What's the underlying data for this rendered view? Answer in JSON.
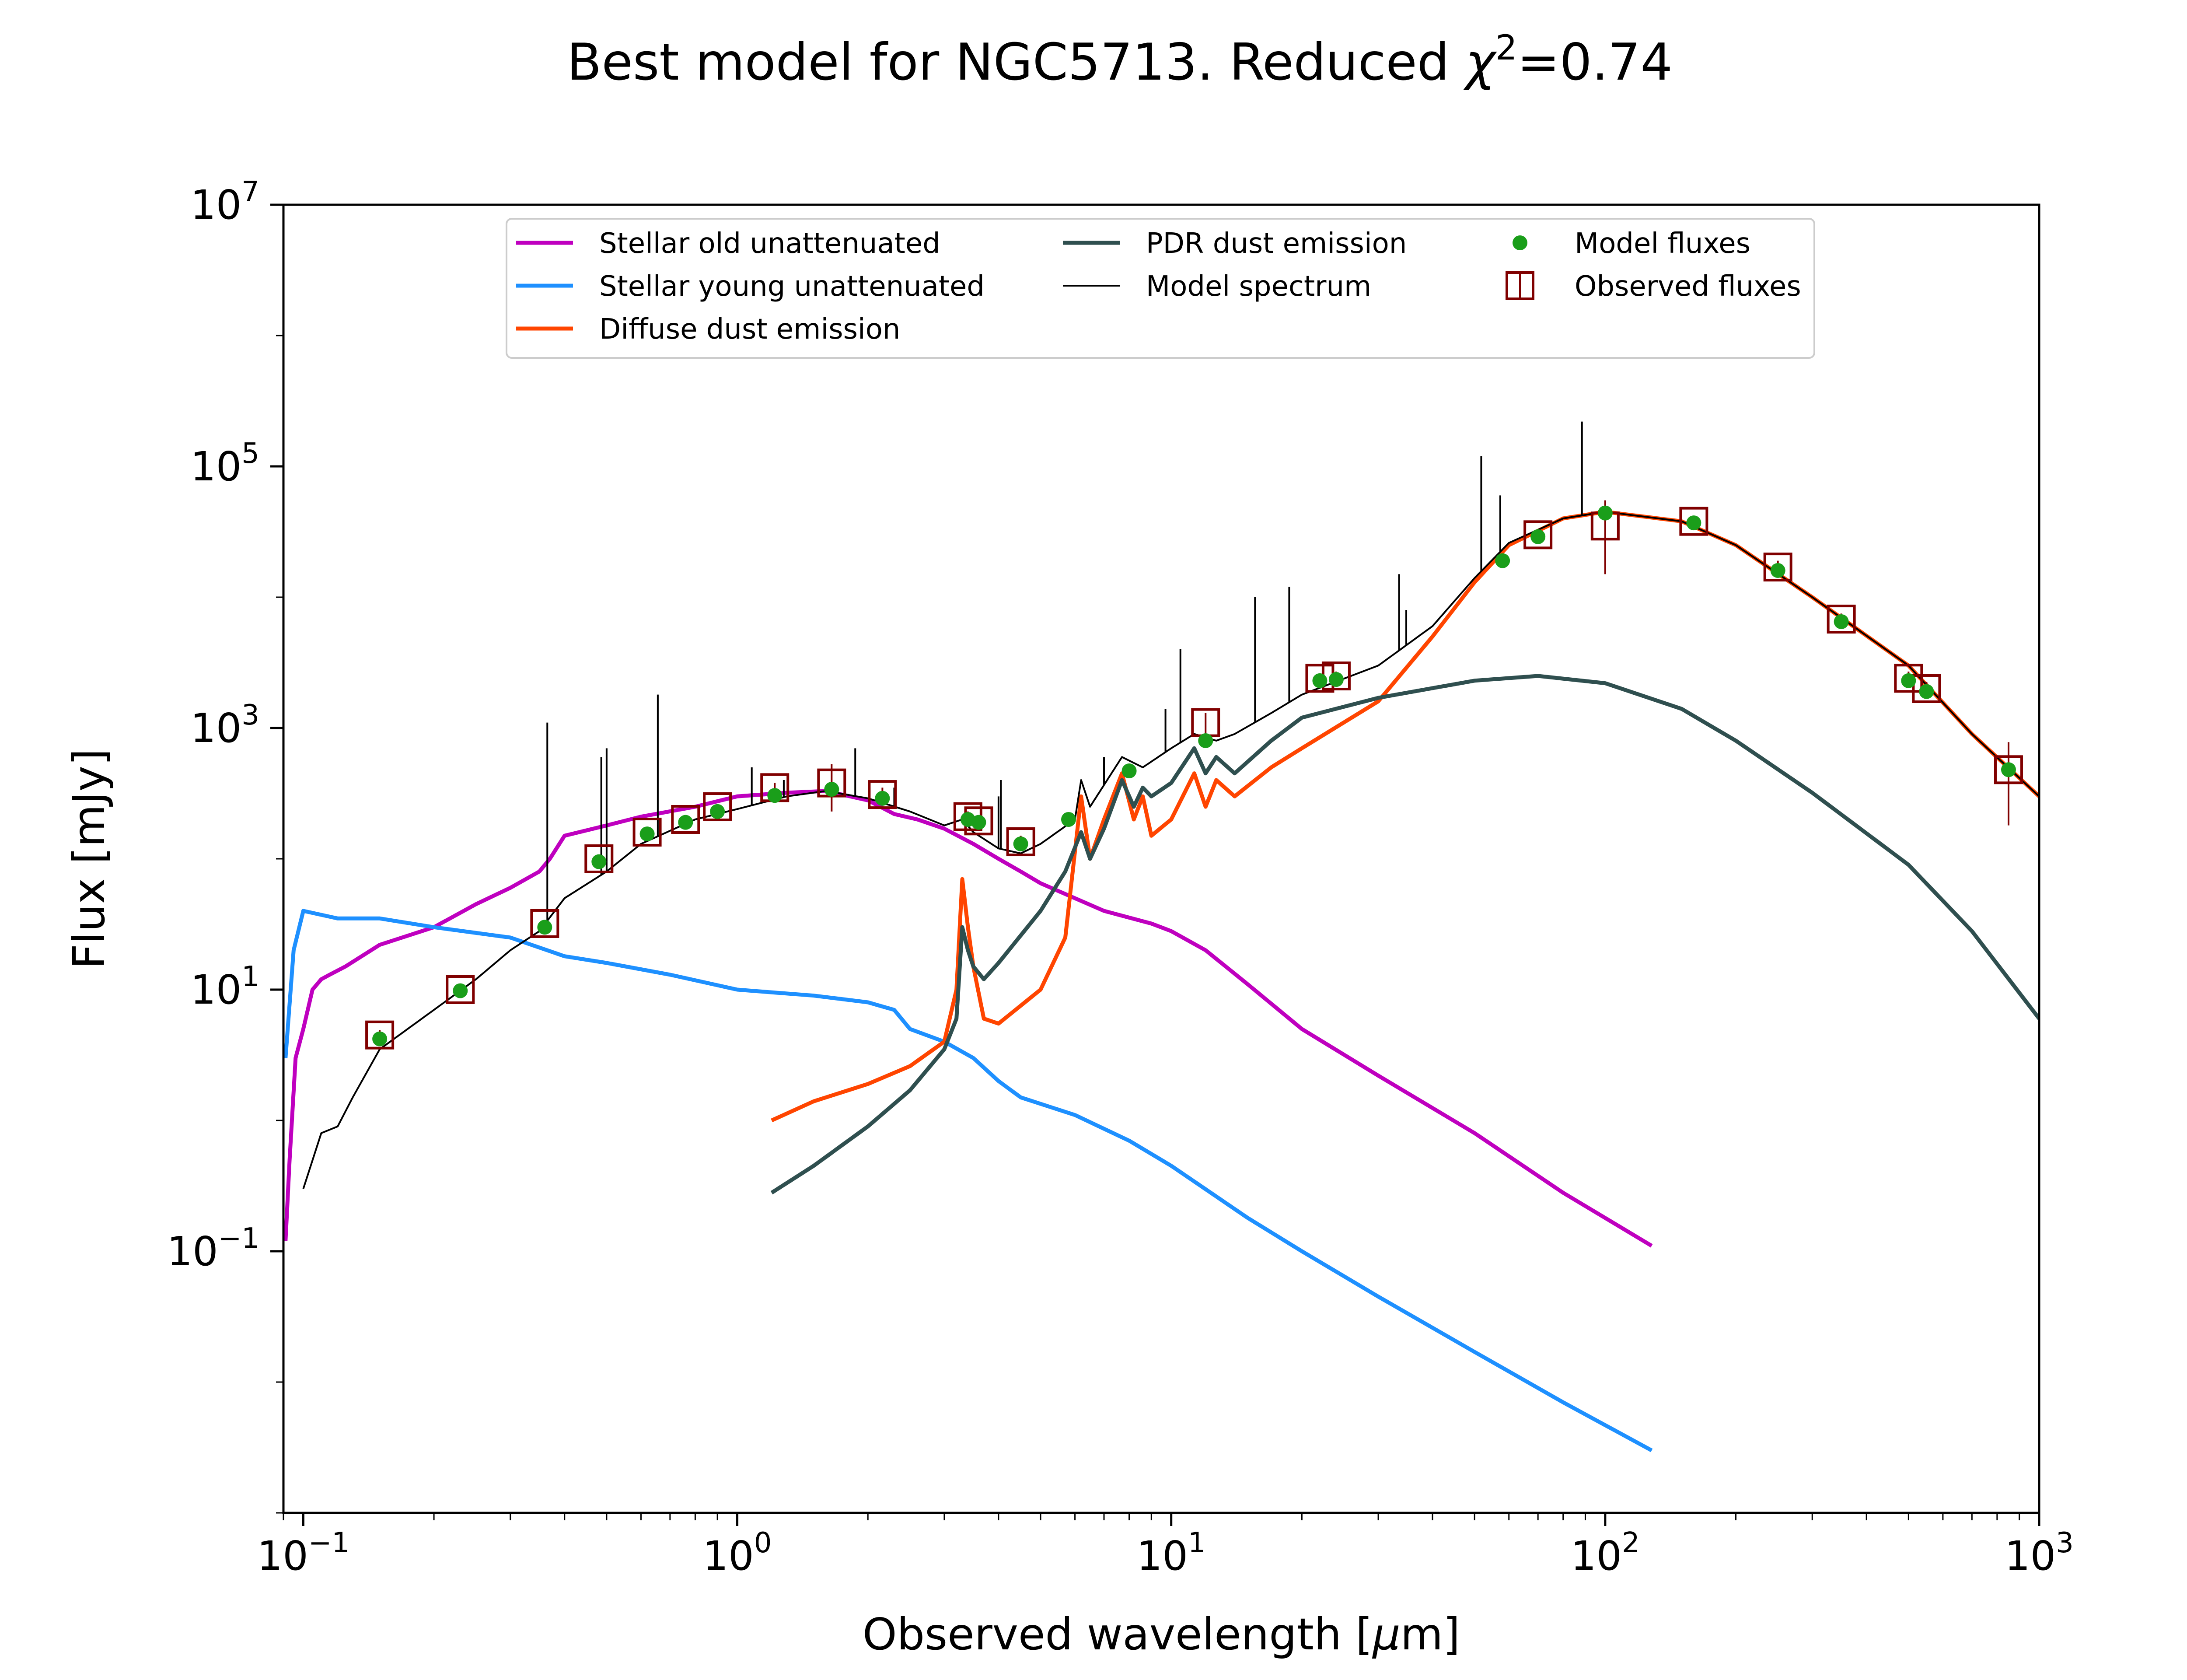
{
  "chart_data": {
    "type": "line",
    "title": "Best model for NGC5713. Reduced χ²=0.74",
    "title_parts": {
      "prefix": "Best model for NGC5713. Reduced ",
      "chi": "χ",
      "sup": "2",
      "suffix": "=0.74"
    },
    "xlabel": "Observed wavelength [μm]",
    "xlabel_parts": {
      "prefix": "Observed wavelength [",
      "mu": "μ",
      "suffix": "m]"
    },
    "ylabel": "Flux [mJy]",
    "xscale": "log",
    "yscale": "log",
    "xlim": [
      0.09,
      1000
    ],
    "ylim": [
      0.001,
      10000000
    ],
    "xticks": [
      {
        "value": 0.1,
        "base": "10",
        "exp": "−1"
      },
      {
        "value": 1,
        "base": "10",
        "exp": "0"
      },
      {
        "value": 10,
        "base": "10",
        "exp": "1"
      },
      {
        "value": 100,
        "base": "10",
        "exp": "2"
      },
      {
        "value": 1000,
        "base": "10",
        "exp": "3"
      }
    ],
    "yticks": [
      {
        "value": 0.1,
        "base": "10",
        "exp": "−1"
      },
      {
        "value": 10,
        "base": "10",
        "exp": "1"
      },
      {
        "value": 1000,
        "base": "10",
        "exp": "3"
      },
      {
        "value": 100000,
        "base": "10",
        "exp": "5"
      },
      {
        "value": 10000000,
        "base": "10",
        "exp": "7"
      }
    ],
    "grid": false,
    "legend_position": "top-center",
    "legend": [
      {
        "label": "Stellar old unattenuated",
        "color": "#bf00bf",
        "marker": "line"
      },
      {
        "label": "Stellar young unattenuated",
        "color": "#1e90ff",
        "marker": "line"
      },
      {
        "label": "Diffuse dust emission",
        "color": "#ff4500",
        "marker": "line"
      },
      {
        "label": "PDR dust emission",
        "color": "#2f4f4f",
        "marker": "line"
      },
      {
        "label": "Model spectrum",
        "color": "#000000",
        "marker": "thin-line"
      },
      {
        "label": "Model fluxes",
        "color": "#1a9e1a",
        "marker": "dot"
      },
      {
        "label": "Observed fluxes",
        "color": "#800000",
        "marker": "square"
      }
    ],
    "series": [
      {
        "name": "Stellar old unattenuated",
        "color": "#bf00bf",
        "points": [
          [
            0.091,
            0.12
          ],
          [
            0.093,
            0.5
          ],
          [
            0.096,
            3
          ],
          [
            0.1,
            5
          ],
          [
            0.105,
            10
          ],
          [
            0.11,
            12
          ],
          [
            0.115,
            13
          ],
          [
            0.125,
            15
          ],
          [
            0.15,
            22
          ],
          [
            0.2,
            30
          ],
          [
            0.25,
            45
          ],
          [
            0.3,
            60
          ],
          [
            0.35,
            80
          ],
          [
            0.37,
            100
          ],
          [
            0.4,
            150
          ],
          [
            0.5,
            180
          ],
          [
            0.6,
            210
          ],
          [
            0.8,
            250
          ],
          [
            1.0,
            300
          ],
          [
            1.3,
            320
          ],
          [
            1.6,
            330
          ],
          [
            2.0,
            280
          ],
          [
            2.3,
            220
          ],
          [
            2.6,
            200
          ],
          [
            3.0,
            170
          ],
          [
            3.5,
            130
          ],
          [
            4.0,
            100
          ],
          [
            4.5,
            80
          ],
          [
            5,
            65
          ],
          [
            7,
            40
          ],
          [
            9,
            32
          ],
          [
            10,
            28
          ],
          [
            12,
            20
          ],
          [
            15,
            11
          ],
          [
            20,
            5
          ],
          [
            30,
            2.2
          ],
          [
            50,
            0.8
          ],
          [
            80,
            0.28
          ],
          [
            128,
            0.11
          ]
        ]
      },
      {
        "name": "Stellar young unattenuated",
        "color": "#1e90ff",
        "points": [
          [
            0.091,
            3
          ],
          [
            0.095,
            20
          ],
          [
            0.1,
            40
          ],
          [
            0.12,
            35
          ],
          [
            0.15,
            35
          ],
          [
            0.2,
            30
          ],
          [
            0.3,
            25
          ],
          [
            0.4,
            18
          ],
          [
            0.5,
            16
          ],
          [
            0.7,
            13
          ],
          [
            1.0,
            10
          ],
          [
            1.5,
            9
          ],
          [
            2.0,
            8
          ],
          [
            2.3,
            7
          ],
          [
            2.5,
            5
          ],
          [
            3,
            4
          ],
          [
            3.5,
            3
          ],
          [
            4,
            2
          ],
          [
            4.5,
            1.5
          ],
          [
            6,
            1.1
          ],
          [
            8,
            0.7
          ],
          [
            10,
            0.45
          ],
          [
            15,
            0.18
          ],
          [
            20,
            0.1
          ],
          [
            30,
            0.045
          ],
          [
            50,
            0.017
          ],
          [
            80,
            0.007
          ],
          [
            128,
            0.003
          ]
        ]
      },
      {
        "name": "Diffuse dust emission",
        "color": "#ff4500",
        "points": [
          [
            1.2,
            1.0
          ],
          [
            1.5,
            1.4
          ],
          [
            2.0,
            1.9
          ],
          [
            2.5,
            2.6
          ],
          [
            3.0,
            4.0
          ],
          [
            3.2,
            10
          ],
          [
            3.3,
            70
          ],
          [
            3.4,
            30
          ],
          [
            3.5,
            15
          ],
          [
            3.7,
            6
          ],
          [
            4.0,
            5.5
          ],
          [
            5.0,
            10
          ],
          [
            5.7,
            25
          ],
          [
            6.2,
            300
          ],
          [
            6.5,
            100
          ],
          [
            7.0,
            200
          ],
          [
            7.7,
            450
          ],
          [
            8.2,
            200
          ],
          [
            8.6,
            300
          ],
          [
            9.0,
            150
          ],
          [
            10,
            200
          ],
          [
            11.3,
            450
          ],
          [
            12,
            250
          ],
          [
            12.7,
            400
          ],
          [
            14,
            300
          ],
          [
            17,
            500
          ],
          [
            20,
            700
          ],
          [
            30,
            1600
          ],
          [
            40,
            5000
          ],
          [
            50,
            13000
          ],
          [
            60,
            25000
          ],
          [
            80,
            40000
          ],
          [
            100,
            45000
          ],
          [
            150,
            38000
          ],
          [
            200,
            25000
          ],
          [
            300,
            10000
          ],
          [
            500,
            3000
          ],
          [
            700,
            900
          ],
          [
            1000,
            300
          ]
        ]
      },
      {
        "name": "PDR dust emission",
        "color": "#2f4f4f",
        "points": [
          [
            1.2,
            0.28
          ],
          [
            1.5,
            0.45
          ],
          [
            2.0,
            0.9
          ],
          [
            2.5,
            1.7
          ],
          [
            3.0,
            3.5
          ],
          [
            3.2,
            6
          ],
          [
            3.3,
            30
          ],
          [
            3.4,
            20
          ],
          [
            3.5,
            15
          ],
          [
            3.7,
            12
          ],
          [
            4.0,
            16
          ],
          [
            5.0,
            40
          ],
          [
            5.7,
            80
          ],
          [
            6.2,
            160
          ],
          [
            6.5,
            100
          ],
          [
            7.0,
            170
          ],
          [
            7.7,
            400
          ],
          [
            8.2,
            250
          ],
          [
            8.6,
            350
          ],
          [
            9.0,
            300
          ],
          [
            10,
            380
          ],
          [
            11.3,
            700
          ],
          [
            12,
            450
          ],
          [
            12.7,
            600
          ],
          [
            14,
            450
          ],
          [
            17,
            800
          ],
          [
            20,
            1200
          ],
          [
            30,
            1700
          ],
          [
            50,
            2300
          ],
          [
            70,
            2500
          ],
          [
            100,
            2200
          ],
          [
            150,
            1400
          ],
          [
            200,
            800
          ],
          [
            300,
            320
          ],
          [
            500,
            90
          ],
          [
            700,
            28
          ],
          [
            1000,
            6
          ]
        ]
      },
      {
        "name": "Model spectrum",
        "color": "#000000",
        "points": [
          [
            0.1,
            0.3
          ],
          [
            0.11,
            0.8
          ],
          [
            0.12,
            0.9
          ],
          [
            0.13,
            1.5
          ],
          [
            0.15,
            3.5
          ],
          [
            0.2,
            7
          ],
          [
            0.25,
            12
          ],
          [
            0.3,
            20
          ],
          [
            0.35,
            28
          ],
          [
            0.4,
            50
          ],
          [
            0.5,
            80
          ],
          [
            0.6,
            130
          ],
          [
            0.8,
            200
          ],
          [
            1.0,
            240
          ],
          [
            1.3,
            300
          ],
          [
            1.6,
            330
          ],
          [
            2.0,
            290
          ],
          [
            2.5,
            230
          ],
          [
            3.0,
            180
          ],
          [
            3.3,
            200
          ],
          [
            3.5,
            160
          ],
          [
            4.0,
            120
          ],
          [
            4.5,
            110
          ],
          [
            5.0,
            130
          ],
          [
            6.0,
            200
          ],
          [
            6.2,
            400
          ],
          [
            6.5,
            250
          ],
          [
            7.7,
            600
          ],
          [
            8.6,
            500
          ],
          [
            10,
            700
          ],
          [
            11.3,
            900
          ],
          [
            12.7,
            800
          ],
          [
            14,
            900
          ],
          [
            17,
            1300
          ],
          [
            20,
            1800
          ],
          [
            30,
            3000
          ],
          [
            40,
            6000
          ],
          [
            50,
            14000
          ],
          [
            60,
            26000
          ],
          [
            80,
            40000
          ],
          [
            100,
            45000
          ],
          [
            150,
            38000
          ],
          [
            200,
            25000
          ],
          [
            300,
            10000
          ],
          [
            500,
            3000
          ],
          [
            700,
            900
          ],
          [
            1000,
            300
          ]
        ]
      }
    ],
    "model_fluxes": [
      [
        0.15,
        4.2
      ],
      [
        0.23,
        9.8
      ],
      [
        0.36,
        30
      ],
      [
        0.48,
        95
      ],
      [
        0.62,
        155
      ],
      [
        0.76,
        190
      ],
      [
        0.9,
        230
      ],
      [
        1.22,
        305
      ],
      [
        1.65,
        340
      ],
      [
        2.16,
        290
      ],
      [
        3.4,
        200
      ],
      [
        3.6,
        190
      ],
      [
        4.5,
        130
      ],
      [
        5.8,
        200
      ],
      [
        8.0,
        470
      ],
      [
        12,
        800
      ],
      [
        22,
        2300
      ],
      [
        24,
        2350
      ],
      [
        58,
        19000
      ],
      [
        70,
        29000
      ],
      [
        100,
        44000
      ],
      [
        160,
        37000
      ],
      [
        250,
        16000
      ],
      [
        350,
        6500
      ],
      [
        500,
        2300
      ],
      [
        550,
        1900
      ],
      [
        850,
        480
      ]
    ],
    "observed_fluxes": [
      [
        0.15,
        4.5,
        0.4
      ],
      [
        0.23,
        10,
        0.8
      ],
      [
        0.36,
        32,
        2
      ],
      [
        0.48,
        100,
        5
      ],
      [
        0.62,
        160,
        8
      ],
      [
        0.76,
        200,
        10
      ],
      [
        0.9,
        250,
        12
      ],
      [
        1.22,
        350,
        30
      ],
      [
        1.65,
        380,
        150
      ],
      [
        2.16,
        310,
        40
      ],
      [
        3.4,
        210,
        20
      ],
      [
        3.6,
        195,
        20
      ],
      [
        4.5,
        135,
        15
      ],
      [
        12,
        1100,
        200
      ],
      [
        22,
        2400,
        200
      ],
      [
        24,
        2500,
        200
      ],
      [
        70,
        30000,
        3000
      ],
      [
        100,
        35000,
        20000
      ],
      [
        160,
        38000,
        4000
      ],
      [
        250,
        17000,
        2000
      ],
      [
        350,
        6800,
        700
      ],
      [
        500,
        2400,
        300
      ],
      [
        550,
        2000,
        250
      ],
      [
        850,
        480,
        300
      ]
    ],
    "emission_lines": [
      [
        0.365,
        1100
      ],
      [
        0.486,
        600
      ],
      [
        0.5,
        700
      ],
      [
        0.656,
        1800
      ],
      [
        1.08,
        500
      ],
      [
        1.28,
        400
      ],
      [
        1.87,
        700
      ],
      [
        2.3,
        350
      ],
      [
        4.0,
        300
      ],
      [
        4.05,
        400
      ],
      [
        7.0,
        600
      ],
      [
        9.7,
        1400
      ],
      [
        10.5,
        4000
      ],
      [
        15.6,
        10000
      ],
      [
        18.7,
        12000
      ],
      [
        33.5,
        15000
      ],
      [
        34.8,
        8000
      ],
      [
        51.8,
        120000
      ],
      [
        57.3,
        60000
      ],
      [
        88.4,
        220000
      ]
    ]
  }
}
